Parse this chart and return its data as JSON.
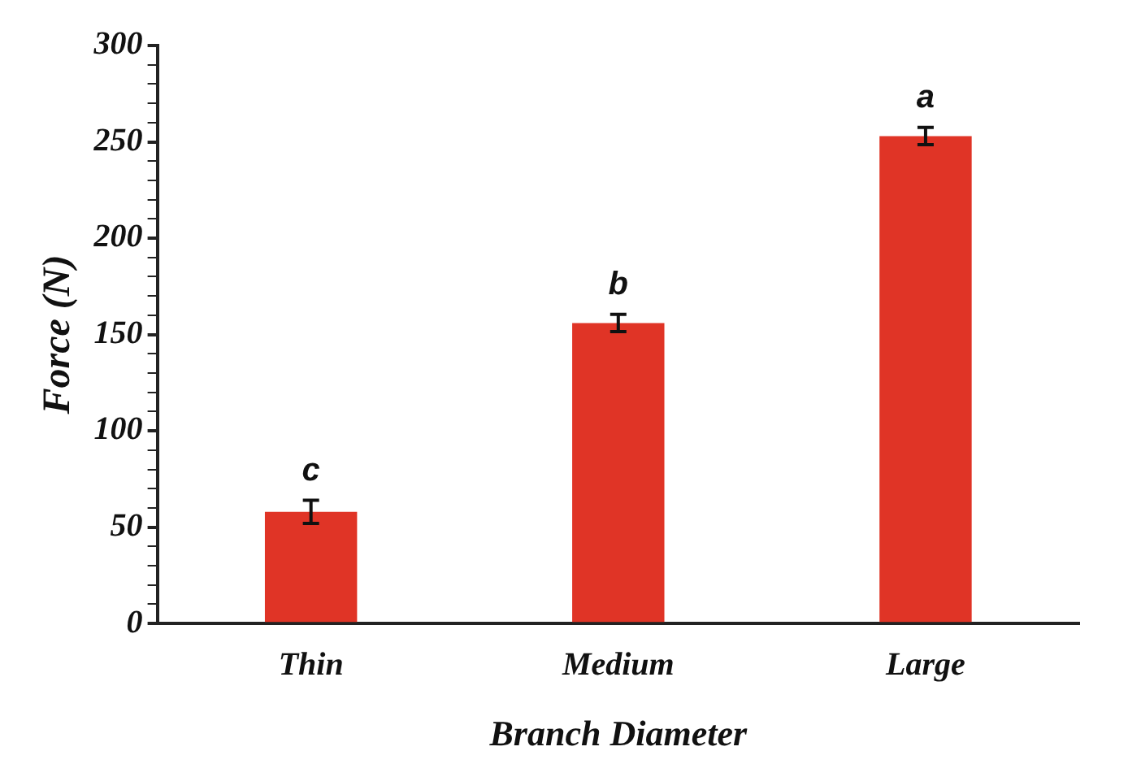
{
  "chart_data": {
    "type": "bar",
    "xlabel": "Branch Diameter",
    "ylabel": "Force (N)",
    "categories": [
      "Thin",
      "Medium",
      "Large"
    ],
    "values": [
      58,
      156,
      253
    ],
    "errors": [
      6,
      4.5,
      4.5
    ],
    "color": "#e03426",
    "ylim": [
      0,
      300
    ],
    "yticks": [
      0,
      {
        "value": 10,
        "label": null
      },
      {
        "value": 20,
        "label": null
      },
      {
        "value": 30,
        "label": null
      },
      {
        "value": 40,
        "label": null
      },
      50,
      {
        "value": 60,
        "label": null
      },
      {
        "value": 70,
        "label": null
      },
      {
        "value": 80,
        "label": null
      },
      {
        "value": 90,
        "label": null
      },
      100,
      {
        "value": 110,
        "label": null
      },
      {
        "value": 120,
        "label": null
      },
      {
        "value": 130,
        "label": null
      },
      {
        "value": 140,
        "label": null
      },
      150,
      {
        "value": 160,
        "label": null
      },
      {
        "value": 170,
        "label": null
      },
      {
        "value": 180,
        "label": null
      },
      {
        "value": 190,
        "label": null
      },
      200,
      {
        "value": 210,
        "label": null
      },
      {
        "value": 220,
        "label": null
      },
      {
        "value": 230,
        "label": null
      },
      {
        "value": 240,
        "label": null
      },
      250,
      {
        "value": 260,
        "label": null
      },
      {
        "value": 270,
        "label": null
      },
      {
        "value": 280,
        "label": null
      },
      {
        "value": 290,
        "label": null
      },
      300
    ],
    "annotations": [
      "c",
      "b",
      "a"
    ],
    "grid": false,
    "legend": false
  }
}
